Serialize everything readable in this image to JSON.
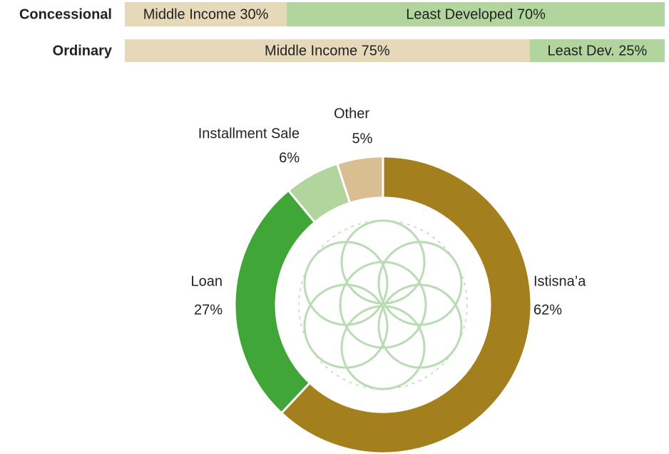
{
  "chart_data": [
    {
      "type": "stacked-bar",
      "orientation": "horizontal",
      "categories": [
        "Concessional",
        "Ordinary"
      ],
      "xlim": [
        0,
        100
      ],
      "series": [
        {
          "color": "#e6d9ba",
          "values": [
            30,
            75
          ],
          "value_labels": [
            "Middle Income 30%",
            "Middle Income 75%"
          ]
        },
        {
          "color": "#b1d59d",
          "values": [
            70,
            25
          ],
          "value_labels": [
            "Least Developed 70%",
            "Least Dev. 25%"
          ]
        }
      ]
    },
    {
      "type": "donut",
      "categories": [
        "Istisna’a",
        "Loan",
        "Installment Sale",
        "Other"
      ],
      "values": [
        62,
        27,
        6,
        5
      ],
      "value_labels": [
        "62%",
        "27%",
        "6%",
        "5%"
      ],
      "colors": [
        "#a47f1d",
        "#40a637",
        "#b1d59d",
        "#d8be90"
      ]
    }
  ]
}
